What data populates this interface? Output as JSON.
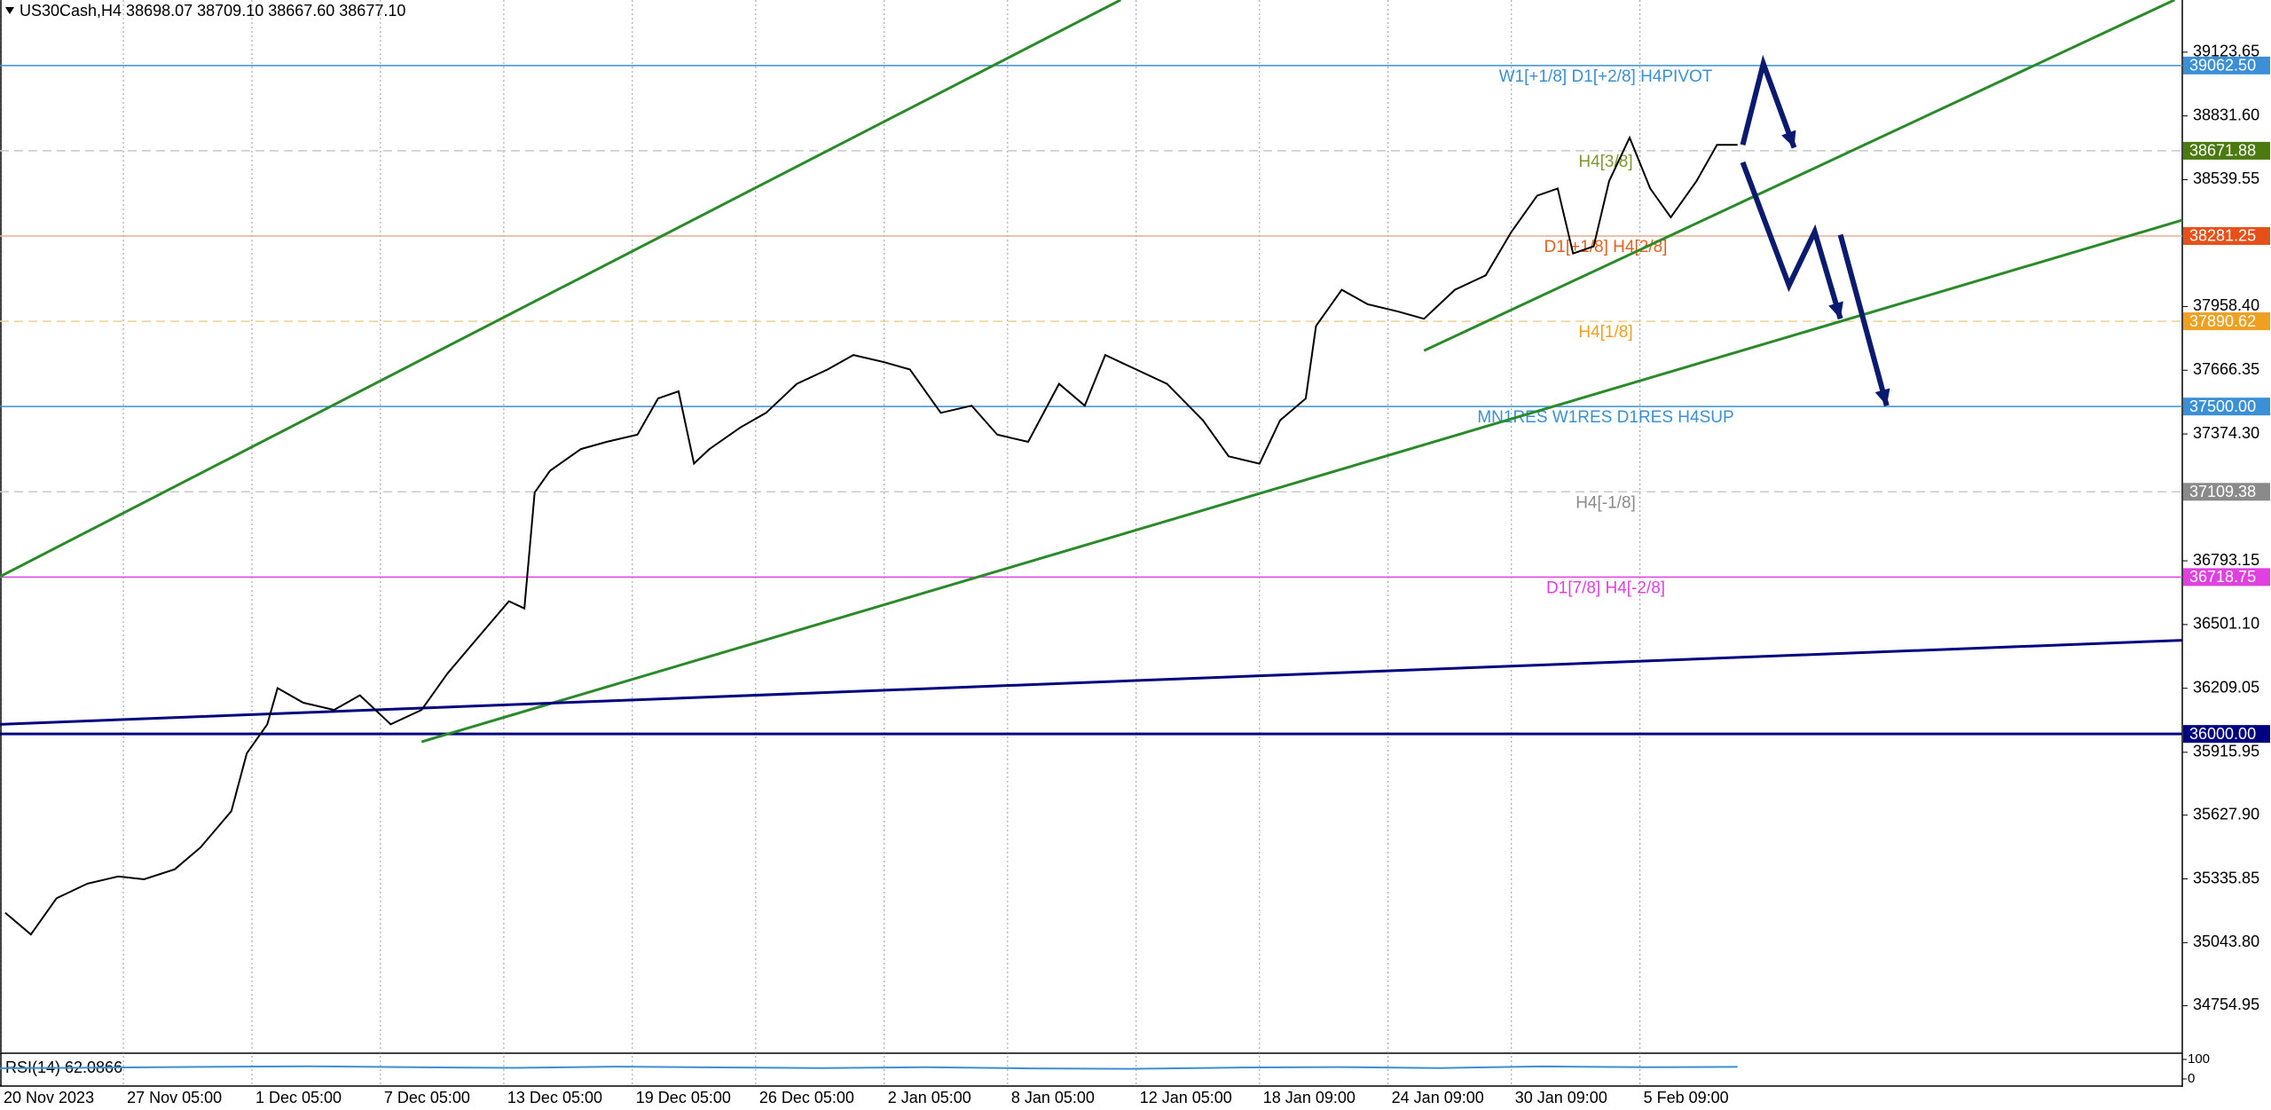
{
  "chart_data": {
    "type": "line",
    "title": "US30Cash,H4 38698.07 38709.10 38667.60 38677.10",
    "color": "#000000",
    "x": [
      1,
      6,
      11,
      17,
      23,
      28,
      34,
      39,
      45,
      48,
      52,
      54,
      59,
      65,
      70,
      76,
      82,
      87,
      93,
      99,
      102,
      104,
      107,
      113,
      118,
      124,
      128,
      132,
      135,
      138,
      144,
      149,
      155,
      161,
      166,
      172,
      177,
      183,
      189,
      194,
      200,
      206,
      211,
      215,
      221,
      227,
      234,
      239,
      245,
      249,
      254,
      256,
      261,
      266,
      272,
      277,
      283,
      289,
      294,
      299,
      303,
      306,
      310,
      313,
      317,
      321,
      325,
      330,
      334,
      338
    ],
    "values": [
      35181,
      35081,
      35247,
      35314,
      35347,
      35334,
      35380,
      35480,
      35646,
      35911,
      36044,
      36210,
      36143,
      36110,
      36177,
      36044,
      36110,
      36276,
      36442,
      36608,
      36575,
      37106,
      37206,
      37305,
      37338,
      37371,
      37537,
      37570,
      37239,
      37305,
      37404,
      37471,
      37604,
      37670,
      37736,
      37703,
      37670,
      37471,
      37504,
      37371,
      37338,
      37604,
      37504,
      37736,
      37670,
      37604,
      37437,
      37272,
      37238,
      37437,
      37537,
      37869,
      38035,
      37969,
      37935,
      37902,
      38035,
      38101,
      38300,
      38466,
      38499,
      38201,
      38234,
      38533,
      38732,
      38499,
      38367,
      38533,
      38699,
      38699
    ],
    "xlim": [
      0,
      424.5
    ],
    "ylim": [
      34537.1,
      39362.6
    ],
    "grid": true,
    "yticks": [
      39123.65,
      {
        "value": 38831.6,
        "label": "38831.60"
      },
      38539.55,
      {
        "value": 37958.4,
        "label": "37958.40"
      },
      37666.35,
      {
        "value": 37374.3,
        "label": "37374.30"
      },
      36793.15,
      {
        "value": 36501.1,
        "label": "36501.10"
      },
      36209.05,
      35915.95,
      {
        "value": 35627.9,
        "label": "35627.90"
      },
      35335.85,
      {
        "value": 35043.8,
        "label": "35043.80"
      },
      34754.95
    ],
    "xticks": [
      {
        "value": 0,
        "label": "20 Nov 2023"
      },
      {
        "value": 24,
        "label": "27 Nov 05:00"
      },
      {
        "value": 49,
        "label": "1 Dec 05:00"
      },
      {
        "value": 74,
        "label": "7 Dec 05:00"
      },
      {
        "value": 98,
        "label": "13 Dec 05:00"
      },
      {
        "value": 123,
        "label": "19 Dec 05:00"
      },
      {
        "value": 147,
        "label": "26 Dec 05:00"
      },
      {
        "value": 172,
        "label": "2 Jan 05:00"
      },
      {
        "value": 196,
        "label": "8 Jan 05:00"
      },
      {
        "value": 221,
        "label": "12 Jan 05:00"
      },
      {
        "value": 245,
        "label": "18 Jan 09:00"
      },
      {
        "value": 270,
        "label": "24 Jan 09:00"
      },
      {
        "value": 294,
        "label": "30 Jan 09:00"
      },
      {
        "value": 319,
        "label": "5 Feb 09:00"
      }
    ],
    "levels": [
      {
        "name": "W1[+1/8] D1[+2/8] H4PIVOT",
        "value": 39062.5,
        "label": "39062.50",
        "color": "#3a8fd6",
        "tag_color": "#3a8fd6",
        "dashed": false
      },
      {
        "name": "H4[3/8]",
        "value": 38671.88,
        "color": "#c8c8c8",
        "tag_color": "#4a7a10",
        "text_color": "#7a9a30",
        "dashed": true
      },
      {
        "name": "D1[+1/8] H4[2/8]",
        "value": 38281.25,
        "label": "38281.25",
        "color": "#e0b090",
        "tag_color": "#e8501a",
        "text_color": "#e0601f",
        "dashed": false
      },
      {
        "name": "H4[1/8]",
        "value": 37890.62,
        "color": "#f0d090",
        "tag_color": "#f0a020",
        "dashed": true
      },
      {
        "name": "MN1RES W1RES D1RES H4SUP",
        "value": 37500,
        "label": "37500.00",
        "color": "#3a8fd6",
        "tag_color": "#3a8fd6",
        "dashed": false
      },
      {
        "name": "H4[-1/8]",
        "value": 37109.38,
        "color": "#c8c8c8",
        "tag_color": "#8a8a8a",
        "dashed": true
      },
      {
        "name": "D1[7/8] H4[-2/8]",
        "value": 36718.75,
        "color": "#e040e0",
        "tag_color": "#e040e0",
        "dashed": false
      }
    ],
    "navy_level": {
      "value": 36000,
      "label": "36000.00",
      "color": "#000080"
    },
    "trendlines": [
      {
        "x": [
          0,
          218
        ],
        "y": [
          36721,
          39363
        ],
        "color": "#2a8a2a"
      },
      {
        "x": [
          82,
          424.5
        ],
        "y": [
          35964,
          38354
        ],
        "color": "#2a8a2a"
      },
      {
        "x": [
          277,
          423
        ],
        "y": [
          37756,
          39363
        ],
        "color": "#2a8a2a"
      },
      {
        "x": [
          0,
          424.5
        ],
        "y": [
          36044,
          36429
        ],
        "color": "#000080"
      }
    ],
    "arrows": [
      {
        "x": [
          339,
          343,
          349
        ],
        "y": [
          38699,
          39071,
          38686
        ],
        "color": "#0a1a6e"
      },
      {
        "x": [
          339,
          348,
          353,
          358
        ],
        "y": [
          38619,
          38055,
          38301,
          37902
        ],
        "color": "#0a1a6e"
      },
      {
        "x": [
          358,
          367
        ],
        "y": [
          38287,
          37504
        ],
        "color": "#0a1a6e"
      }
    ],
    "rsi": {
      "name": "RSI(14) 62.0866",
      "color": "#3a8fd6",
      "ylim": [
        0,
        100
      ],
      "yticks": [
        100,
        0
      ],
      "x": [
        0,
        20,
        40,
        60,
        80,
        100,
        120,
        140,
        160,
        180,
        200,
        220,
        240,
        260,
        280,
        300,
        320,
        338
      ],
      "values": [
        55,
        58,
        62,
        65,
        60,
        57,
        63,
        59,
        56,
        60,
        54,
        52,
        58,
        61,
        56,
        64,
        60,
        62
      ]
    }
  }
}
